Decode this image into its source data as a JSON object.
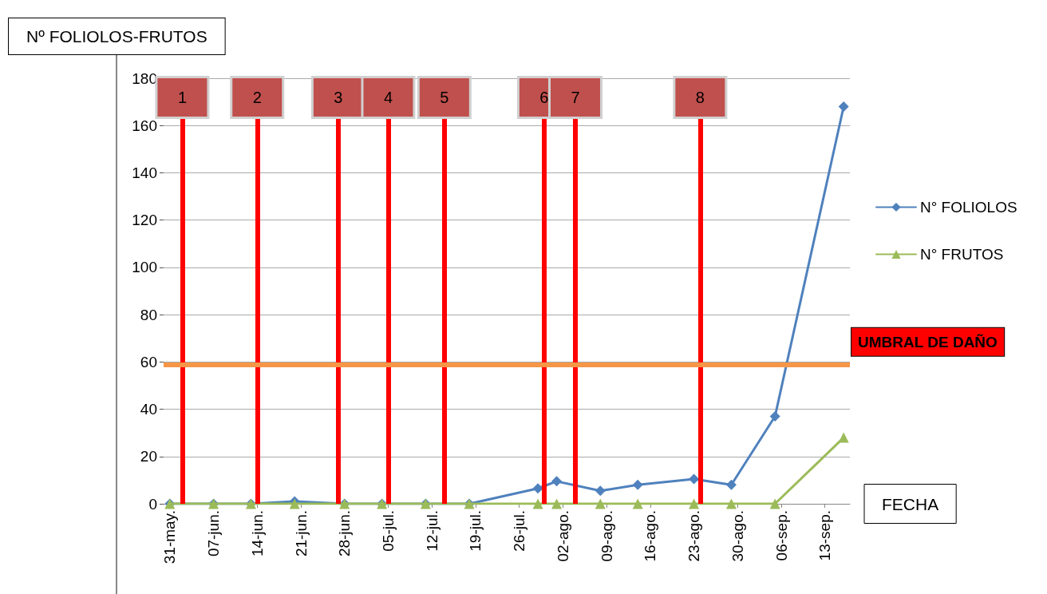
{
  "chart_data": {
    "type": "line",
    "ylabel": "Nº FOLIOLOS-FRUTOS",
    "xlabel": "FECHA",
    "x": [
      "--05-31",
      "--06-07",
      "--06-13",
      "--06-20",
      "--06-28",
      "--07-04",
      "--07-11",
      "--07-18",
      "--07-29",
      "--08-01",
      "--08-08",
      "--08-14",
      "--08-23",
      "--08-29",
      "--09-05",
      "--09-16"
    ],
    "series": [
      {
        "name": "N° FOLIOLOS",
        "color": "#4f81bd",
        "marker": "diamond",
        "values": [
          0,
          0,
          0,
          1,
          0,
          0,
          0,
          0,
          6.5,
          9.5,
          5.5,
          8,
          10.5,
          8,
          37,
          168
        ]
      },
      {
        "name": "N° FRUTOS",
        "color": "#9bbb59",
        "marker": "triangle",
        "values": [
          0,
          0,
          0,
          0,
          0,
          0,
          0,
          0,
          0,
          0,
          0,
          0,
          0,
          0,
          0,
          28
        ]
      }
    ],
    "xlim": [
      "--05-30",
      "--09-17"
    ],
    "xticks": [
      {
        "value": "--05-31",
        "label": "31-may."
      },
      {
        "value": "--06-07",
        "label": "07-jun."
      },
      {
        "value": "--06-14",
        "label": "14-jun."
      },
      {
        "value": "--06-21",
        "label": "21-jun."
      },
      {
        "value": "--06-28",
        "label": "28-jun."
      },
      {
        "value": "--07-05",
        "label": "05-jul."
      },
      {
        "value": "--07-12",
        "label": "12-jul."
      },
      {
        "value": "--07-19",
        "label": "19-jul."
      },
      {
        "value": "--07-26",
        "label": "26-jul."
      },
      {
        "value": "--08-02",
        "label": "02-ago."
      },
      {
        "value": "--08-09",
        "label": "09-ago."
      },
      {
        "value": "--08-16",
        "label": "16-ago."
      },
      {
        "value": "--08-23",
        "label": "23-ago."
      },
      {
        "value": "--08-30",
        "label": "30-ago."
      },
      {
        "value": "--09-06",
        "label": "06-sep."
      },
      {
        "value": "--09-13",
        "label": "13-sep."
      }
    ],
    "ylim": [
      0,
      180
    ],
    "yticks": [
      0,
      20,
      40,
      60,
      80,
      100,
      120,
      140,
      160,
      180
    ],
    "grid": "y",
    "legend": "right",
    "line_style": "solid",
    "ref_lines": [
      {
        "axis": "x",
        "value": "--06-02",
        "label": "1",
        "color": "#ff0000"
      },
      {
        "axis": "x",
        "value": "--06-14",
        "label": "2",
        "color": "#ff0000"
      },
      {
        "axis": "x",
        "value": "--06-27",
        "label": "3",
        "color": "#ff0000"
      },
      {
        "axis": "x",
        "value": "--07-05",
        "label": "4",
        "color": "#ff0000"
      },
      {
        "axis": "x",
        "value": "--07-14",
        "label": "5",
        "color": "#ff0000"
      },
      {
        "axis": "x",
        "value": "--07-30",
        "label": "6",
        "color": "#ff0000"
      },
      {
        "axis": "x",
        "value": "--08-04",
        "label": "7",
        "color": "#ff0000"
      },
      {
        "axis": "x",
        "value": "--08-24",
        "label": "8",
        "color": "#ff0000"
      },
      {
        "axis": "y",
        "value": 59,
        "label": "UMBRAL DE DAÑO",
        "color": "#f79646"
      }
    ]
  }
}
